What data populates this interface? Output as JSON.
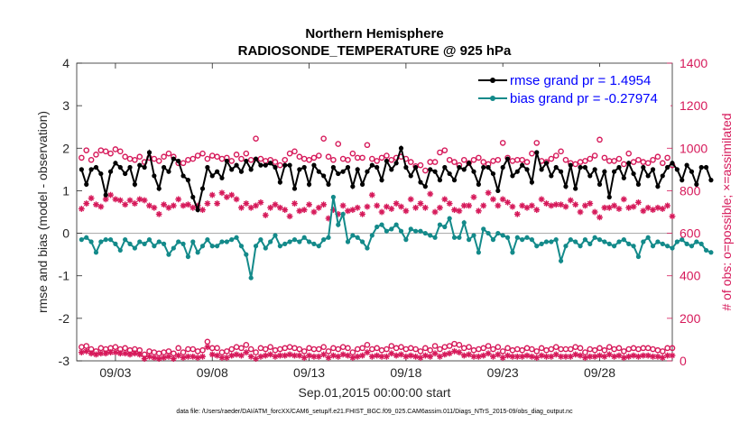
{
  "chart_data": {
    "type": "line",
    "title": "Northern Hemisphere",
    "subtitle": "RADIOSONDE_TEMPERATURE @ 925 hPa",
    "xlabel": "Sep.01,2015 00:00:00 start",
    "ylabel": "rmse and bias (model - observation)",
    "ylabel_right": "# of obs: o=possible; ×=assimilated",
    "footnote": "data file: /Users/raeder/DAI/ATM_forcXX/CAM6_setup/f.e21.FHIST_BGC.f09_025.CAM6assim.011/Diags_NTrS_2015-09/obs_diag_output.nc",
    "xlim": [
      1,
      31.75
    ],
    "ylim": [
      -3,
      4
    ],
    "ylim_right": [
      0,
      1400
    ],
    "x_ticks": [
      3,
      8,
      13,
      18,
      23,
      28
    ],
    "x_tick_labels": [
      "09/03",
      "09/08",
      "09/13",
      "09/18",
      "09/23",
      "09/28"
    ],
    "y_ticks": [
      -3,
      -2,
      -1,
      0,
      1,
      2,
      3,
      4
    ],
    "y_tick_labels": [
      "-3",
      "-2",
      "-1",
      "0",
      "1",
      "2",
      "3",
      "4"
    ],
    "y_right_ticks": [
      0,
      200,
      400,
      600,
      800,
      1000,
      1200,
      1400
    ],
    "y_right_tick_labels": [
      "0",
      "200",
      "400",
      "600",
      "800",
      "1000",
      "1200",
      "1400"
    ],
    "x_start": 1.25,
    "x_step": 0.25,
    "colors": {
      "rmse": "#000000",
      "bias": "#138a8a",
      "obs": "#d6195a",
      "zero_line": "#b0b0b0",
      "legend_text": "#0000ff"
    },
    "legend": {
      "placement": "top-right",
      "entries": [
        "rmse grand pr = 1.4954",
        "bias grand pr = -0.27974"
      ]
    },
    "series": [
      {
        "name": "rmse grand pr = 1.4954",
        "values": [
          1.5,
          1.15,
          1.5,
          1.55,
          1.4,
          0.9,
          1.45,
          1.65,
          1.55,
          1.4,
          1.55,
          1.15,
          1.6,
          1.55,
          1.9,
          1.35,
          1.05,
          1.55,
          1.45,
          1.75,
          1.7,
          1.35,
          1.25,
          0.85,
          0.55,
          1.05,
          1.55,
          1.35,
          1.45,
          1.3,
          1.7,
          1.5,
          1.6,
          1.45,
          1.7,
          1.5,
          1.75,
          1.6,
          1.6,
          1.65,
          1.55,
          1.2,
          1.6,
          1.6,
          1.05,
          1.5,
          1.55,
          1.15,
          1.6,
          1.45,
          1.35,
          1.15,
          1.55,
          1.4,
          1.45,
          1.55,
          1.1,
          1.5,
          1.15,
          1.45,
          1.6,
          1.55,
          1.25,
          1.7,
          1.5,
          1.65,
          2.0,
          1.55,
          1.35,
          1.55,
          1.2,
          1.1,
          1.5,
          1.45,
          1.25,
          1.55,
          1.4,
          1.25,
          1.55,
          1.5,
          1.65,
          1.45,
          1.15,
          1.55,
          1.55,
          1.4,
          1.0,
          1.55,
          1.75,
          1.35,
          1.45,
          1.6,
          1.5,
          1.2,
          1.9,
          1.5,
          1.65,
          1.35,
          1.55,
          1.45,
          1.1,
          1.6,
          1.05,
          1.55,
          1.55,
          1.35,
          1.5,
          1.15,
          1.45,
          0.85,
          1.45,
          1.55,
          1.3,
          1.65,
          1.4,
          1.15,
          1.55,
          1.35,
          1.5,
          1.1,
          1.35,
          1.55,
          1.65,
          1.5,
          1.25,
          1.6,
          1.45,
          1.15,
          1.55,
          1.55,
          1.25
        ],
        "marker": "circle-filled"
      },
      {
        "name": "bias grand pr = -0.27974",
        "values": [
          -0.15,
          -0.1,
          -0.2,
          -0.45,
          -0.2,
          -0.15,
          -0.15,
          -0.25,
          -0.4,
          -0.15,
          -0.25,
          -0.35,
          -0.2,
          -0.25,
          -0.15,
          -0.3,
          -0.2,
          -0.25,
          -0.5,
          -0.35,
          -0.2,
          -0.25,
          -0.55,
          -0.2,
          -0.45,
          -0.3,
          -0.15,
          -0.3,
          -0.3,
          -0.2,
          -0.2,
          -0.15,
          -0.1,
          -0.3,
          -0.5,
          -1.05,
          -0.3,
          -0.15,
          -0.35,
          -0.2,
          -0.05,
          -0.3,
          -0.25,
          -0.2,
          -0.15,
          -0.2,
          -0.1,
          -0.2,
          -0.25,
          -0.3,
          -0.15,
          -0.1,
          0.85,
          0.2,
          0.45,
          -0.2,
          -0.05,
          -0.1,
          -0.2,
          -0.35,
          -0.05,
          0.15,
          0.2,
          0.05,
          0.1,
          0.2,
          0.05,
          -0.15,
          0.1,
          0.05,
          0.05,
          0.0,
          -0.05,
          -0.1,
          0.2,
          0.15,
          0.35,
          -0.1,
          -0.1,
          0.25,
          -0.15,
          -0.05,
          -0.45,
          0.1,
          0.0,
          -0.15,
          0.0,
          -0.05,
          -0.1,
          -0.45,
          -0.1,
          -0.15,
          -0.1,
          -0.15,
          -0.3,
          -0.25,
          -0.2,
          -0.2,
          -0.15,
          -0.65,
          -0.3,
          -0.15,
          -0.2,
          -0.3,
          -0.15,
          -0.25,
          -0.1,
          -0.15,
          -0.2,
          -0.25,
          -0.3,
          -0.2,
          -0.15,
          -0.25,
          -0.3,
          -0.55,
          -0.2,
          -0.1,
          -0.3,
          -0.2,
          -0.25,
          -0.3,
          -0.35,
          -0.2,
          -0.15,
          -0.25,
          -0.3,
          -0.2,
          -0.25,
          -0.4,
          -0.45
        ],
        "marker": "circle-filled"
      },
      {
        "name": "possible obs",
        "axis": "right",
        "marker": "circle-open",
        "values": [
          955,
          990,
          945,
          970,
          990,
          985,
          975,
          995,
          985,
          960,
          950,
          945,
          960,
          935,
          955,
          950,
          940,
          960,
          975,
          960,
          930,
          930,
          945,
          950,
          965,
          975,
          950,
          965,
          960,
          950,
          955,
          940,
          970,
          950,
          975,
          945,
          1045,
          950,
          940,
          945,
          935,
          920,
          945,
          975,
          985,
          960,
          950,
          945,
          955,
          965,
          1045,
          960,
          945,
          1020,
          950,
          945,
          975,
          955,
          955,
          1015,
          950,
          940,
          955,
          965,
          945,
          955,
          960,
          950,
          935,
          915,
          920,
          895,
          935,
          935,
          980,
          990,
          945,
          935,
          920,
          945,
          930,
          945,
          955,
          935,
          925,
          940,
          945,
          1025,
          955,
          940,
          945,
          945,
          935,
          975,
          1025,
          940,
          935,
          950,
          965,
          985,
          945,
          930,
          925,
          935,
          940,
          950,
          965,
          1040,
          955,
          940,
          940,
          950,
          925,
          975,
          935,
          945,
          935,
          930,
          945,
          960,
          930,
          955,
          920,
          945,
          935,
          925,
          955,
          935,
          950,
          960,
          945
        ]
      },
      {
        "name": "assimilated obs",
        "axis": "right",
        "marker": "asterisk",
        "values": [
          715,
          740,
          765,
          735,
          725,
          760,
          780,
          760,
          755,
          735,
          755,
          740,
          760,
          755,
          730,
          720,
          690,
          735,
          720,
          730,
          760,
          730,
          735,
          720,
          730,
          710,
          740,
          780,
          740,
          790,
          770,
          780,
          760,
          720,
          740,
          720,
          730,
          745,
          685,
          720,
          735,
          720,
          710,
          680,
          740,
          705,
          710,
          735,
          700,
          720,
          735,
          670,
          710,
          690,
          730,
          705,
          710,
          720,
          690,
          725,
          780,
          730,
          700,
          725,
          715,
          740,
          725,
          705,
          760,
          720,
          740,
          720,
          785,
          700,
          720,
          760,
          740,
          710,
          705,
          730,
          730,
          770,
          705,
          730,
          790,
          760,
          730,
          760,
          745,
          725,
          690,
          730,
          720,
          730,
          710,
          760,
          740,
          730,
          735,
          735,
          725,
          755,
          735,
          700,
          730,
          740,
          700,
          675,
          720,
          720,
          730,
          715,
          760,
          720,
          725,
          745,
          705,
          720,
          710,
          720,
          715,
          730,
          680,
          720,
          700,
          730,
          710,
          740,
          730,
          725,
          720
        ]
      },
      {
        "name": "possible obs (low)",
        "axis": "right",
        "marker": "circle-open",
        "values": [
          65,
          70,
          55,
          45,
          60,
          55,
          60,
          65,
          55,
          60,
          50,
          55,
          50,
          30,
          45,
          40,
          35,
          40,
          45,
          35,
          60,
          40,
          55,
          55,
          45,
          50,
          90,
          60,
          60,
          40,
          45,
          55,
          65,
          60,
          75,
          55,
          40,
          60,
          55,
          65,
          50,
          55,
          60,
          65,
          60,
          55,
          45,
          60,
          55,
          55,
          65,
          45,
          60,
          55,
          65,
          60,
          40,
          55,
          60,
          75,
          55,
          60,
          50,
          55,
          70,
          60,
          65,
          55,
          60,
          55,
          45,
          60,
          50,
          70,
          55,
          65,
          70,
          80,
          75,
          60,
          65,
          50,
          55,
          60,
          70,
          55,
          65,
          45,
          60,
          50,
          55,
          50,
          60,
          55,
          45,
          60,
          50,
          55,
          65,
          55,
          55,
          55,
          65,
          60,
          40,
          55,
          50,
          60,
          50,
          65,
          55,
          60,
          45,
          55,
          60,
          55,
          60,
          60,
          55,
          50,
          45,
          60,
          60,
          65,
          70,
          75,
          65,
          80,
          85,
          90,
          145
        ]
      },
      {
        "name": "assimilated obs (low)",
        "axis": "right",
        "marker": "asterisk",
        "values": [
          40,
          45,
          35,
          30,
          35,
          35,
          40,
          40,
          35,
          35,
          30,
          35,
          30,
          10,
          20,
          15,
          10,
          15,
          20,
          10,
          25,
          15,
          20,
          20,
          15,
          20,
          65,
          30,
          25,
          15,
          15,
          25,
          30,
          25,
          40,
          20,
          10,
          20,
          25,
          30,
          20,
          25,
          25,
          30,
          25,
          25,
          15,
          25,
          20,
          20,
          30,
          15,
          25,
          20,
          30,
          25,
          15,
          20,
          25,
          40,
          20,
          25,
          20,
          20,
          35,
          25,
          30,
          20,
          25,
          20,
          15,
          25,
          20,
          35,
          20,
          30,
          35,
          45,
          40,
          25,
          30,
          20,
          20,
          25,
          35,
          20,
          30,
          15,
          25,
          20,
          20,
          20,
          25,
          20,
          15,
          25,
          20,
          20,
          30,
          20,
          20,
          20,
          30,
          25,
          15,
          20,
          20,
          25,
          20,
          30,
          20,
          25,
          15,
          20,
          25,
          20,
          25,
          25,
          20,
          20,
          15,
          25,
          25,
          30,
          35,
          40,
          30,
          45,
          50,
          55,
          110
        ]
      }
    ]
  }
}
